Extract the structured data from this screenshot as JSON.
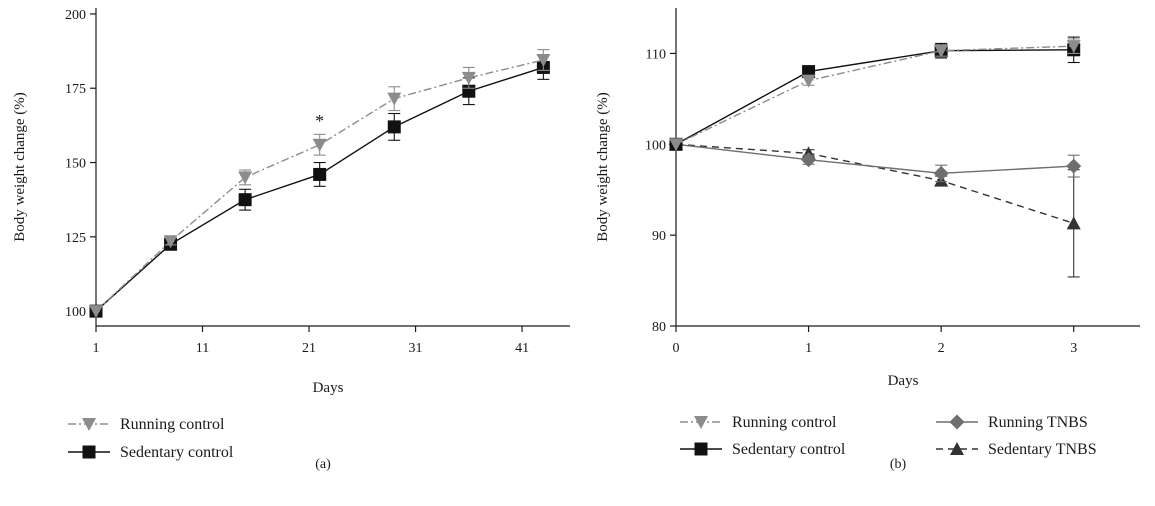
{
  "colors": {
    "running": "#8c8c8c",
    "sedentary": "#111111",
    "running_tnbs": "#6e6e6e",
    "sedentary_tnbs": "#333333",
    "axis": "#1a1a1a"
  },
  "chart_data": [
    {
      "panel_label": "(a)",
      "type": "line",
      "xlabel": "Days",
      "ylabel": "Body weight change (%)",
      "xlim": [
        1,
        45.5
      ],
      "ylim": [
        95,
        202
      ],
      "xticks": [
        1,
        11,
        21,
        31,
        41
      ],
      "yticks": [
        100,
        125,
        150,
        175,
        200
      ],
      "grid": false,
      "legend_position": "bottom-left",
      "annotations": [
        {
          "text": "*",
          "x": 22,
          "y": 162
        }
      ],
      "series": [
        {
          "name": "Running control",
          "marker": "triangle-down",
          "line_style": "dash-dot",
          "color_key": "running",
          "x": [
            1,
            8,
            15,
            22,
            29,
            36,
            43
          ],
          "y": [
            100,
            123.5,
            145,
            156,
            171.5,
            178.5,
            184.5
          ],
          "err": [
            0,
            1.2,
            2.5,
            3.5,
            4,
            3.5,
            3.5
          ]
        },
        {
          "name": "Sedentary control",
          "marker": "square",
          "line_style": "solid",
          "color_key": "sedentary",
          "x": [
            1,
            8,
            15,
            22,
            29,
            36,
            43
          ],
          "y": [
            100,
            122.5,
            137.5,
            146,
            162,
            174,
            182
          ],
          "err": [
            0,
            1,
            3.5,
            4,
            4.5,
            4.5,
            4
          ]
        }
      ]
    },
    {
      "panel_label": "(b)",
      "type": "line",
      "xlabel": "Days",
      "ylabel": "Body weight change (%)",
      "xlim": [
        0,
        3.5
      ],
      "ylim": [
        80,
        115
      ],
      "xticks": [
        0,
        1,
        2,
        3
      ],
      "yticks": [
        80,
        90,
        100,
        110
      ],
      "grid": false,
      "legend_position": "bottom",
      "series": [
        {
          "name": "Running control",
          "marker": "triangle-down",
          "line_style": "dash-dot",
          "color_key": "running",
          "x": [
            0,
            1,
            2,
            3
          ],
          "y": [
            100,
            107,
            110.3,
            110.8
          ],
          "err": [
            0,
            0.5,
            0.6,
            0.8
          ]
        },
        {
          "name": "Sedentary control",
          "marker": "square",
          "line_style": "solid",
          "color_key": "sedentary",
          "x": [
            0,
            1,
            2,
            3
          ],
          "y": [
            100,
            108,
            110.3,
            110.4
          ],
          "err": [
            0,
            0.5,
            0.8,
            1.4
          ]
        },
        {
          "name": "Running TNBS",
          "marker": "diamond",
          "line_style": "solid",
          "color_key": "running_tnbs",
          "x": [
            0,
            1,
            2,
            3
          ],
          "y": [
            100,
            98.3,
            96.8,
            97.6
          ],
          "err": [
            0,
            0.5,
            0.9,
            1.2
          ]
        },
        {
          "name": "Sedentary TNBS",
          "marker": "triangle-up",
          "line_style": "dashed",
          "color_key": "sedentary_tnbs",
          "x": [
            0,
            1,
            2,
            3
          ],
          "y": [
            100,
            99,
            96,
            91.3
          ],
          "err": [
            0,
            0.4,
            0.5,
            5.9
          ]
        }
      ]
    }
  ]
}
